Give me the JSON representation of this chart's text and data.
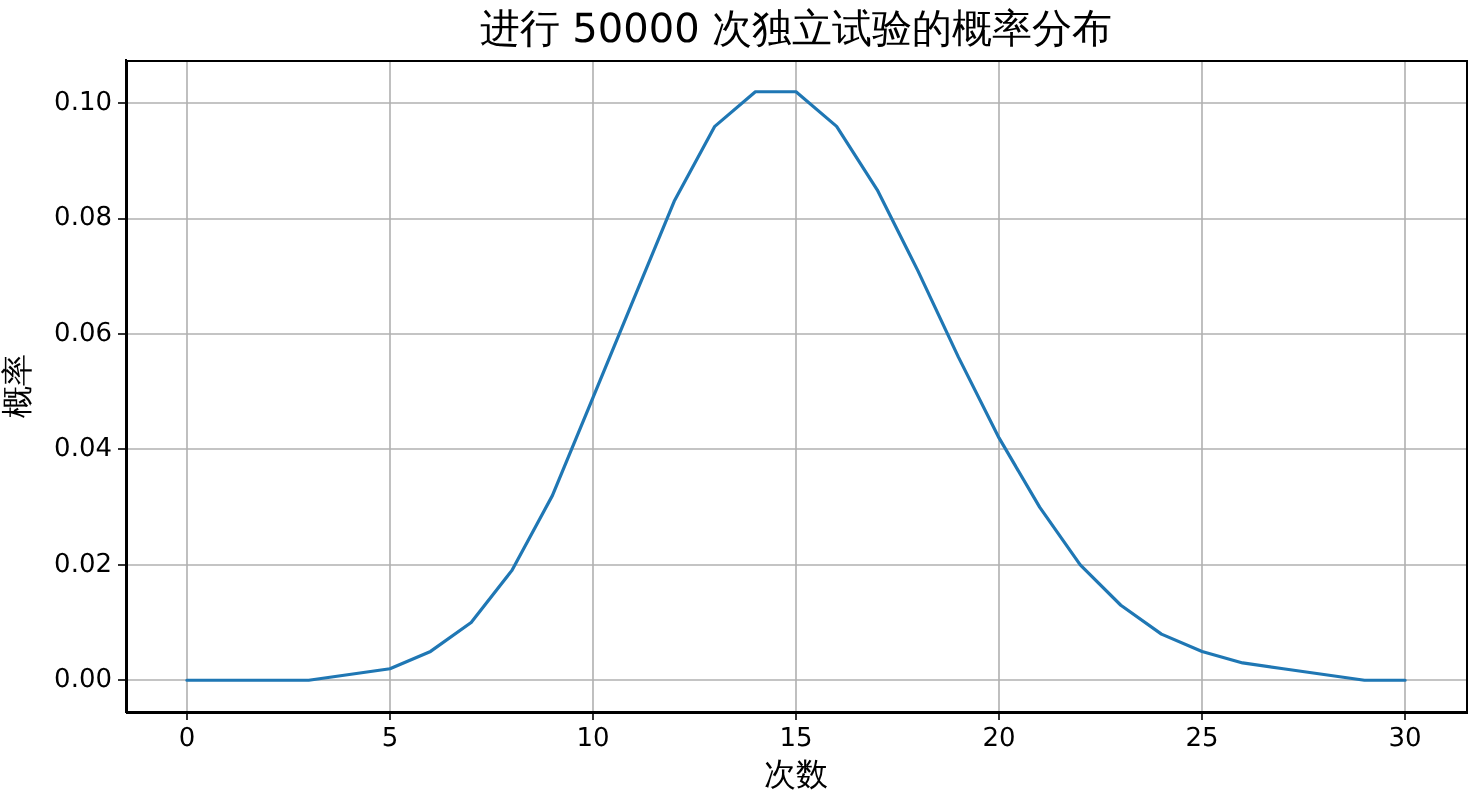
{
  "chart_data": {
    "type": "line",
    "title": "进行 50000 次独立试验的概率分布",
    "xlabel": "次数",
    "ylabel": "概率",
    "x": [
      0,
      1,
      2,
      3,
      4,
      5,
      6,
      7,
      8,
      9,
      10,
      11,
      12,
      13,
      14,
      15,
      16,
      17,
      18,
      19,
      20,
      21,
      22,
      23,
      24,
      25,
      26,
      27,
      28,
      29,
      30
    ],
    "values": [
      0,
      0,
      0,
      0,
      0.001,
      0.002,
      0.005,
      0.01,
      0.019,
      0.032,
      0.049,
      0.066,
      0.083,
      0.096,
      0.102,
      0.102,
      0.096,
      0.085,
      0.071,
      0.056,
      0.042,
      0.03,
      0.02,
      0.013,
      0.008,
      0.005,
      0.003,
      0.002,
      0.001,
      0,
      0
    ],
    "color": "#1f77b4",
    "xlim": [
      -1.5,
      31.5
    ],
    "xticks": [
      0,
      5,
      10,
      15,
      20,
      25,
      30
    ],
    "ylim": [
      -0.0055,
      0.1075
    ],
    "yticks": [
      {
        "value": 0,
        "label": "0.00"
      },
      0.02,
      0.04,
      0.06,
      0.08,
      {
        "value": 0.1,
        "label": "0.10"
      }
    ],
    "grid": true
  }
}
